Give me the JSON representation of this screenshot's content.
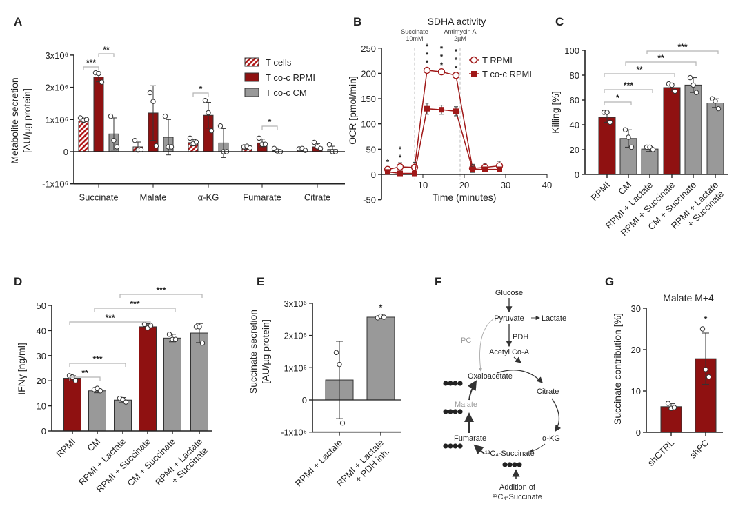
{
  "panel_letters": [
    "A",
    "B",
    "C",
    "D",
    "E",
    "F",
    "G"
  ],
  "colors": {
    "red": "#8f1111",
    "gray": "#999999",
    "bracket": "#b5b5b5",
    "axis": "#222222"
  },
  "chart_data": [
    {
      "id": "A",
      "type": "bar",
      "ylabel": [
        "Metabolite secretion",
        "[AU/µg protein]"
      ],
      "ylim": [
        -1000000,
        3000000
      ],
      "yticks": [
        -1000000,
        0,
        1000000,
        2000000,
        3000000
      ],
      "ytick_labels": [
        "-1x10⁶",
        "0",
        "1x10⁶",
        "2x10⁶",
        "3x10⁶"
      ],
      "categories": [
        "Succinate",
        "Malate",
        "α-KG",
        "Fumarate",
        "Citrate"
      ],
      "legend": "top-right",
      "series": [
        {
          "name": "T cells",
          "style": "hatched-red",
          "values": [
            950000,
            150000,
            280000,
            120000,
            60000
          ],
          "errors": [
            50000,
            150000,
            100000,
            50000,
            50000
          ],
          "points": [
            [
              1050000,
              980000,
              1000000
            ],
            [
              350000,
              50000,
              60000
            ],
            [
              420000,
              250000,
              300000
            ],
            [
              150000,
              170000,
              120000
            ],
            [
              90000,
              100000,
              40000
            ]
          ]
        },
        {
          "name": "T co-c RPMI",
          "style": "red",
          "values": [
            2320000,
            1200000,
            1130000,
            270000,
            150000
          ],
          "errors": [
            150000,
            850000,
            400000,
            120000,
            100000
          ],
          "points": [
            [
              2450000,
              2430000,
              2160000
            ],
            [
              1830000,
              1560000,
              180000
            ],
            [
              1590000,
              1210000,
              650000
            ],
            [
              420000,
              230000,
              230000
            ],
            [
              290000,
              150000,
              100000
            ]
          ]
        },
        {
          "name": "T co-c CM",
          "style": "gray",
          "values": [
            550000,
            450000,
            270000,
            20000,
            70000
          ],
          "errors": [
            500000,
            550000,
            450000,
            50000,
            100000
          ],
          "points": [
            [
              1100000,
              350000,
              150000
            ],
            [
              1100000,
              150000,
              150000
            ],
            [
              800000,
              0,
              0
            ],
            [
              100000,
              20000,
              0
            ],
            [
              220000,
              0,
              0
            ]
          ]
        }
      ],
      "significance": [
        {
          "category": 0,
          "from_series": 0,
          "to_series": 1,
          "label": "***"
        },
        {
          "category": 0,
          "from_series": 1,
          "to_series": 2,
          "label": "**"
        },
        {
          "category": 2,
          "from_series": 0,
          "to_series": 1,
          "label": "*"
        },
        {
          "category": 3,
          "from_series": 1,
          "to_series": 2,
          "label": "*"
        }
      ]
    },
    {
      "id": "B",
      "type": "line",
      "title": "SDHA activity",
      "xlabel": "Time (minutes)",
      "ylabel": "OCR [pmol/min]",
      "xlim": [
        0,
        40
      ],
      "ylim": [
        -50,
        250
      ],
      "xticks": [
        10,
        20,
        30,
        40
      ],
      "yticks": [
        -50,
        0,
        50,
        100,
        150,
        200,
        250
      ],
      "legend": "top-right",
      "injections": [
        {
          "time": 8,
          "label": [
            "Succinate",
            "10mM"
          ]
        },
        {
          "time": 19,
          "label": [
            "Antimycin A",
            "2µM"
          ]
        }
      ],
      "x": [
        1.5,
        4.5,
        8,
        11,
        14.5,
        18,
        22,
        25,
        28.5
      ],
      "series": [
        {
          "name": "T RPMI",
          "marker": "open-circle",
          "values": [
            10,
            15,
            14,
            206,
            203,
            196,
            12,
            14,
            17
          ],
          "errors": [
            4,
            8,
            10,
            4,
            3,
            4,
            8,
            8,
            9
          ]
        },
        {
          "name": "T co-c RPMI",
          "marker": "filled-square",
          "values": [
            5,
            2,
            2,
            130,
            128,
            125,
            10,
            10,
            10
          ],
          "errors": [
            4,
            3,
            3,
            11,
            9,
            9,
            6,
            5,
            5
          ]
        }
      ],
      "significance": [
        {
          "x_index": 0,
          "label": "*"
        },
        {
          "x_index": 1,
          "label": "**"
        },
        {
          "x_index": 3,
          "label": "***"
        },
        {
          "x_index": 4,
          "label": "***"
        },
        {
          "x_index": 5,
          "label": "***"
        }
      ]
    },
    {
      "id": "C",
      "type": "bar",
      "ylabel": "Killing [%]",
      "ylim": [
        0,
        100
      ],
      "yticks": [
        0,
        20,
        40,
        60,
        80,
        100
      ],
      "categories": [
        "RPMI",
        "CM",
        "RPMI + Lactate",
        "RPMI + Succinate",
        "CM + Succinate",
        "RPMI + Lactate\n+ Succinate"
      ],
      "styles": [
        "red",
        "gray",
        "gray",
        "red",
        "gray",
        "gray"
      ],
      "values": [
        46,
        29,
        20.5,
        70,
        72,
        57.5
      ],
      "errors": [
        4,
        7,
        2,
        3.5,
        6,
        3.5
      ],
      "points": [
        [
          50,
          50,
          42
        ],
        [
          36,
          30,
          22
        ],
        [
          22,
          22,
          20
        ],
        [
          73,
          72,
          67
        ],
        [
          78,
          72,
          66
        ],
        [
          61,
          59,
          53
        ]
      ],
      "significance": [
        {
          "from": 2,
          "to": 5,
          "label": "***"
        },
        {
          "from": 1,
          "to": 4,
          "label": "**"
        },
        {
          "from": 0,
          "to": 3,
          "label": "**"
        },
        {
          "from": 0,
          "to": 2,
          "label": "***"
        },
        {
          "from": 0,
          "to": 1,
          "label": "*"
        }
      ]
    },
    {
      "id": "D",
      "type": "bar",
      "ylabel": "IFNγ [ng/ml]",
      "ylim": [
        0,
        50
      ],
      "yticks": [
        0,
        10,
        20,
        30,
        40,
        50
      ],
      "categories": [
        "RPMI",
        "CM",
        "RPMI + Lactate",
        "RPMI + Succinate",
        "CM + Succinate",
        "RPMI + Lactate\n+ Succinate"
      ],
      "styles": [
        "red",
        "gray",
        "gray",
        "red",
        "gray",
        "gray"
      ],
      "values": [
        21,
        16,
        12.3,
        41.5,
        37,
        39
      ],
      "errors": [
        1,
        0.8,
        1,
        1.2,
        1.5,
        3.8
      ],
      "points": [
        [
          22,
          21.5,
          20
        ],
        [
          16.5,
          17,
          16
        ],
        [
          13,
          12.5,
          11.5
        ],
        [
          42.5,
          41,
          42
        ],
        [
          38.5,
          36.5,
          36.5
        ],
        [
          41.5,
          41.5,
          35
        ]
      ],
      "significance": [
        {
          "from": 2,
          "to": 5,
          "label": "***"
        },
        {
          "from": 1,
          "to": 4,
          "label": "***"
        },
        {
          "from": 0,
          "to": 3,
          "label": "***"
        },
        {
          "from": 0,
          "to": 2,
          "label": "***"
        },
        {
          "from": 0,
          "to": 1,
          "label": "**"
        }
      ]
    },
    {
      "id": "E",
      "type": "bar",
      "ylabel": [
        "Succinate secretion",
        "[AU/µg protein]"
      ],
      "ylim": [
        -1000000,
        3000000
      ],
      "yticks": [
        -1000000,
        0,
        1000000,
        2000000,
        3000000
      ],
      "ytick_labels": [
        "-1x10⁶",
        "0",
        "1x10⁶",
        "2x10⁶",
        "3x10⁶"
      ],
      "categories": [
        "RPMI + Lactate",
        "RPMI + Lactate\n+ PDH inh."
      ],
      "styles": [
        "gray",
        "gray"
      ],
      "values": [
        620000,
        2570000
      ],
      "errors": [
        1200000,
        30000
      ],
      "points": [
        [
          1470000,
          1100000,
          -720000
        ],
        [
          2550000,
          2600000,
          2570000
        ]
      ],
      "significance": [
        {
          "bar": 1,
          "label": "*"
        }
      ]
    },
    {
      "id": "G",
      "type": "bar",
      "title": "Malate M+4",
      "ylabel": "Succinate contribution [%]",
      "ylim": [
        0,
        30
      ],
      "yticks": [
        0,
        10,
        20,
        30
      ],
      "categories": [
        "shCTRL",
        "shPC"
      ],
      "styles": [
        "red",
        "red"
      ],
      "values": [
        6.2,
        17.8
      ],
      "errors": [
        0.7,
        6.2
      ],
      "points": [
        [
          7,
          5.8,
          6
        ],
        [
          25,
          15.2,
          13.4
        ]
      ],
      "significance": [
        {
          "bar": 1,
          "label": "*"
        }
      ]
    }
  ],
  "pathway": {
    "nodes": {
      "glucose": "Glucose",
      "pyruvate": "Pyruvate",
      "lactate": "Lactate",
      "pdh": "PDH",
      "acetyl": "Acetyl Co-A",
      "pc": "PC",
      "oxaloacetate": "Oxaloacetate",
      "citrate": "Citrate",
      "malate": "Malate",
      "fumarate": "Fumarate",
      "akg": "α-KG",
      "succinate": "¹³C₄-Succinate",
      "addition": "Addition of",
      "addition2": "¹³C₄-Succinate"
    }
  }
}
